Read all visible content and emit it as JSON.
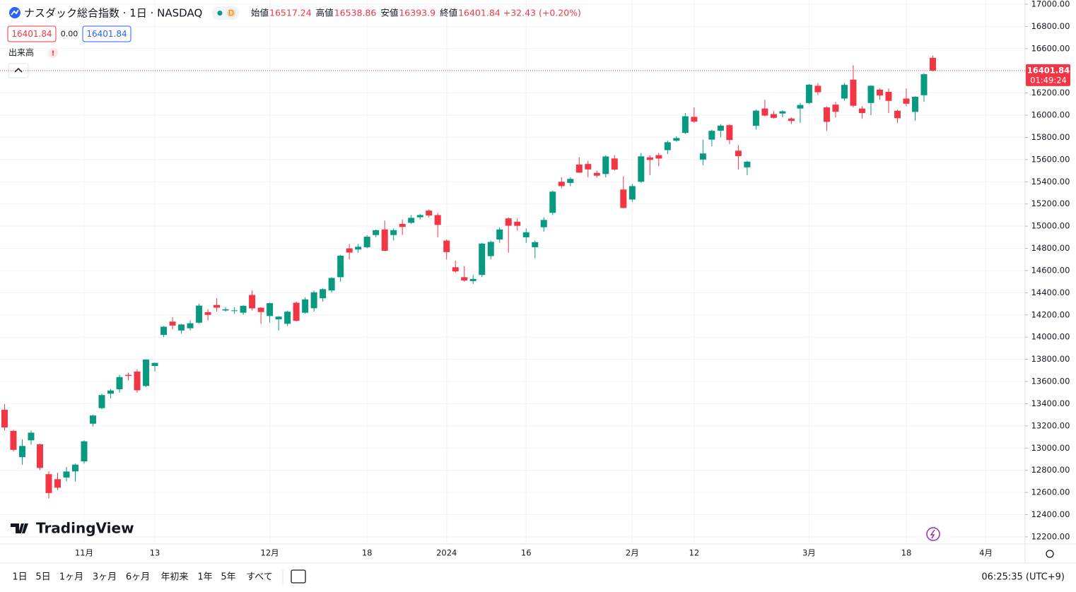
{
  "header": {
    "title": "ナスダック総合指数 · 1日 · NASDAQ",
    "interval_badge": "D",
    "open_label": "始値",
    "high_label": "高値",
    "low_label": "安値",
    "close_label": "終値",
    "change": "+32.43",
    "change_pct": "(+0.20%)",
    "spread": "0.00",
    "volume_label": "出来高",
    "timer": "01:49:24",
    "logo": "TradingView"
  },
  "toolbar": {
    "ranges": [
      "1日",
      "5日",
      "1ヶ月",
      "3ヶ月",
      "6ヶ月",
      "年初来",
      "1年",
      "5年",
      "すべて"
    ],
    "clock": "06:25:35 (UTC+9)"
  },
  "chart_data": {
    "type": "candlestick",
    "up_color": "#089981",
    "down_color": "#f23645",
    "grid": true,
    "categories": [
      null,
      null,
      null,
      null,
      null,
      null,
      null,
      null,
      null,
      "11月",
      null,
      null,
      null,
      null,
      null,
      null,
      null,
      "13",
      null,
      null,
      null,
      null,
      null,
      null,
      null,
      null,
      null,
      null,
      null,
      null,
      "12月",
      null,
      null,
      null,
      null,
      null,
      null,
      null,
      null,
      null,
      null,
      "18",
      null,
      null,
      null,
      null,
      null,
      null,
      null,
      null,
      "2024",
      null,
      null,
      null,
      null,
      null,
      null,
      null,
      null,
      "16",
      null,
      null,
      null,
      null,
      null,
      null,
      null,
      null,
      null,
      null,
      null,
      "2月",
      null,
      null,
      null,
      null,
      null,
      null,
      "12",
      null,
      null,
      null,
      null,
      null,
      null,
      null,
      null,
      null,
      null,
      null,
      null,
      "3月",
      null,
      null,
      null,
      null,
      null,
      null,
      null,
      null,
      null,
      null,
      "18",
      null,
      null,
      null,
      null,
      null,
      null,
      null,
      null,
      "4月",
      null,
      null,
      null,
      null
    ],
    "open": [
      13345,
      13155,
      12918,
      13070,
      13034,
      12765,
      12720,
      12735,
      12790,
      12880,
      13220,
      13360,
      13490,
      13530,
      13660,
      13690,
      13560,
      13740,
      14020,
      14140,
      14060,
      14080,
      14130,
      14225,
      14290,
      14240,
      14235,
      14220,
      14380,
      14265,
      14190,
      14160,
      14120,
      14310,
      14220,
      14260,
      14350,
      14420,
      14540,
      14800,
      14790,
      14810,
      14920,
      14970,
      14920,
      15020,
      15030,
      15080,
      15140,
      15100,
      14870,
      14630,
      14540,
      14505,
      14560,
      14730,
      14880,
      15070,
      15040,
      14900,
      14810,
      14990,
      15120,
      15400,
      15390,
      15555,
      15560,
      15480,
      15470,
      15610,
      15330,
      15240,
      15400,
      15620,
      15640,
      15685,
      15770,
      15840,
      15985,
      15600,
      15780,
      15860,
      15910,
      15680,
      15530,
      15905,
      16060,
      16010,
      16015,
      15970,
      16060,
      16110,
      16265,
      16070,
      16095,
      16150,
      16320,
      16060,
      16110,
      16230,
      16210,
      16040,
      16150,
      16030,
      16180,
      16517.24,
      null,
      null,
      null,
      null,
      null,
      null,
      null,
      null,
      null,
      null
    ],
    "high": [
      13397,
      13165,
      13080,
      13160,
      13040,
      12790,
      12780,
      12830,
      12860,
      13070,
      13300,
      13490,
      13530,
      13660,
      13680,
      13710,
      13800,
      13770,
      14100,
      14180,
      14120,
      14150,
      14300,
      14250,
      14350,
      14270,
      14270,
      14290,
      14420,
      14270,
      14310,
      14190,
      14240,
      14320,
      14360,
      14420,
      14440,
      14540,
      14740,
      14840,
      14840,
      14920,
      14970,
      15050,
      14980,
      15060,
      15100,
      15110,
      15150,
      15120,
      14880,
      14690,
      14640,
      14560,
      14850,
      14870,
      14990,
      15080,
      15070,
      14980,
      14870,
      15080,
      15320,
      15440,
      15440,
      15620,
      15590,
      15500,
      15640,
      15640,
      15450,
      15380,
      15660,
      15640,
      15660,
      15770,
      15810,
      16020,
      16070,
      15780,
      15870,
      15920,
      15920,
      15730,
      15590,
      16050,
      16140,
      16040,
      16045,
      15980,
      16110,
      16280,
      16290,
      16080,
      16120,
      16290,
      16450,
      16080,
      16270,
      16240,
      16240,
      16050,
      16240,
      16170,
      16380,
      16538.86,
      null,
      null,
      null,
      null,
      null,
      null,
      null,
      null,
      null,
      null
    ],
    "low": [
      13160,
      12970,
      12850,
      13030,
      12800,
      12545,
      12620,
      12700,
      12700,
      12860,
      13195,
      13350,
      13450,
      13500,
      13610,
      13500,
      13550,
      13690,
      14000,
      14070,
      14030,
      14060,
      14120,
      14150,
      14230,
      14230,
      14210,
      14200,
      14240,
      14120,
      14130,
      14060,
      14100,
      14140,
      14210,
      14230,
      14320,
      14400,
      14500,
      14700,
      14760,
      14800,
      14900,
      14777,
      14870,
      14920,
      15020,
      15060,
      15080,
      14900,
      14700,
      14580,
      14500,
      14480,
      14540,
      14700,
      14850,
      14760,
      14960,
      14850,
      14710,
      14950,
      15100,
      15340,
      15360,
      15480,
      15440,
      15440,
      15440,
      15500,
      15160,
      15220,
      15390,
      15460,
      15540,
      15650,
      15760,
      15830,
      15930,
      15550,
      15720,
      15800,
      15740,
      15510,
      15460,
      15870,
      15990,
      15970,
      15980,
      15920,
      15930,
      16100,
      16180,
      15860,
      15980,
      16130,
      16070,
      15970,
      16000,
      16140,
      16020,
      15930,
      16080,
      15950,
      16120,
      16393.9,
      null,
      null,
      null,
      null,
      null,
      null,
      null,
      null,
      null,
      null
    ],
    "close": [
      13186,
      12984,
      13019,
      13139,
      12821,
      12595,
      12643,
      12789,
      12851,
      13061,
      13294,
      13478,
      13519,
      13640,
      13650,
      13521,
      13798,
      13768,
      14094,
      14104,
      14114,
      14125,
      14284,
      14200,
      14265,
      14251,
      14241,
      14282,
      14259,
      14226,
      14306,
      14185,
      14229,
      14147,
      14340,
      14404,
      14432,
      14533,
      14734,
      14762,
      14814,
      14905,
      14964,
      14778,
      14964,
      14993,
      15075,
      15100,
      15096,
      15011,
      14766,
      14592,
      14510,
      14524,
      14843,
      14858,
      14970,
      15004,
      15003,
      14945,
      14856,
      15056,
      15311,
      15361,
      15426,
      15482,
      15511,
      15455,
      15628,
      15510,
      15164,
      15361,
      15629,
      15597,
      15609,
      15756,
      15794,
      15990,
      15942,
      15655,
      15859,
      15906,
      15776,
      15631,
      15581,
      16041,
      15996,
      15976,
      16035,
      15948,
      16092,
      16275,
      16207,
      15940,
      16031,
      16273,
      16085,
      16019,
      16265,
      16178,
      16129,
      15973,
      16103,
      16166,
      16369,
      16401.84,
      null,
      null,
      null,
      null,
      null,
      null,
      null,
      null,
      null,
      null
    ],
    "ylim": [
      12136,
      17038
    ],
    "yticks": [
      {
        "value": 12200,
        "label": "12200.00"
      },
      {
        "value": 12400,
        "label": "12400.00"
      },
      {
        "value": 12600,
        "label": "12600.00"
      },
      {
        "value": 12800,
        "label": "12800.00"
      },
      {
        "value": 13000,
        "label": "13000.00"
      },
      {
        "value": 13200,
        "label": "13200.00"
      },
      {
        "value": 13400,
        "label": "13400.00"
      },
      {
        "value": 13600,
        "label": "13600.00"
      },
      {
        "value": 13800,
        "label": "13800.00"
      },
      {
        "value": 14000,
        "label": "14000.00"
      },
      {
        "value": 14200,
        "label": "14200.00"
      },
      {
        "value": 14400,
        "label": "14400.00"
      },
      {
        "value": 14600,
        "label": "14600.00"
      },
      {
        "value": 14800,
        "label": "14800.00"
      },
      {
        "value": 15000,
        "label": "15000.00"
      },
      {
        "value": 15200,
        "label": "15200.00"
      },
      {
        "value": 15400,
        "label": "15400.00"
      },
      {
        "value": 15600,
        "label": "15600.00"
      },
      {
        "value": 15800,
        "label": "15800.00"
      },
      {
        "value": 16000,
        "label": "16000.00"
      },
      {
        "value": 16200,
        "label": "16200.00"
      },
      {
        "value": 16400,
        "label": "16400.00"
      },
      {
        "value": 16600,
        "label": "16600.00"
      },
      {
        "value": 16800,
        "label": "16800.00"
      },
      {
        "value": 17000,
        "label": "17000.00"
      }
    ]
  }
}
